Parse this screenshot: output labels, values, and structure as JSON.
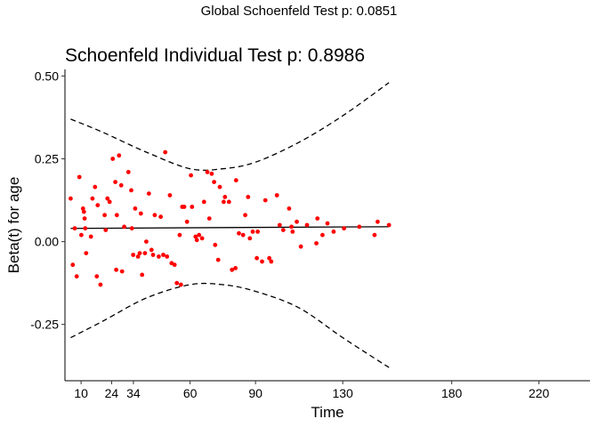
{
  "chart_data": {
    "type": "scatter",
    "suptitle": "Global Schoenfeld Test p: 0.0851",
    "title": "Schoenfeld Individual Test p: 0.8986",
    "xlabel": "Time",
    "ylabel": "Beta(t) for age",
    "x_scale": "rank-transformed time (tick labels show original time)",
    "x_ticks": [
      {
        "position": 10,
        "label": "10"
      },
      {
        "position": 24,
        "label": "24"
      },
      {
        "position": 34,
        "label": "34"
      },
      {
        "position": 60,
        "label": "60"
      },
      {
        "position": 90,
        "label": "90"
      },
      {
        "position": 130,
        "label": "130"
      },
      {
        "position": 180,
        "label": "180"
      },
      {
        "position": 220,
        "label": "220"
      }
    ],
    "y_ticks": [
      -0.25,
      0.0,
      0.25,
      0.5
    ],
    "y_tick_labels": [
      "-0.25",
      "0.00",
      "0.25",
      "0.50"
    ],
    "xlim": [
      2.6,
      243.4
    ],
    "ylim": [
      -0.42,
      0.52
    ],
    "grid": false,
    "legend": "none",
    "colors": {
      "points": "#ff0000",
      "lines": "#000000"
    },
    "points": {
      "x": [
        5.2,
        6.2,
        7.1,
        8.0,
        9.2,
        10.1,
        10.9,
        11.3,
        11.6,
        11.9,
        12.3,
        14.5,
        15.2,
        16.4,
        17.2,
        17.6,
        18.9,
        20.8,
        21.3,
        22.1,
        23.1,
        24.5,
        25.7,
        26.1,
        26.4,
        27.4,
        28.4,
        28.8,
        29.8,
        31.7,
        33.0,
        33.3,
        33.9,
        34.8,
        36.1,
        36.9,
        37.4,
        38.0,
        39.3,
        39.9,
        41.1,
        42.3,
        43.0,
        43.8,
        45.6,
        46.5,
        47.7,
        48.6,
        49.4,
        50.7,
        51.5,
        52.9,
        53.9,
        55.2,
        55.8,
        56.4,
        57.3,
        58.6,
        60.4,
        60.9,
        62.5,
        63.1,
        64.1,
        65.5,
        66.4,
        67.9,
        68.8,
        69.9,
        71.0,
        71.5,
        72.9,
        73.6,
        75.4,
        76.0,
        77.8,
        79.2,
        80.8,
        81.1,
        82.4,
        84.3,
        85.3,
        86.6,
        87.4,
        88.7,
        90.6,
        91.0,
        93.0,
        94.5,
        96.3,
        97.2,
        99.8,
        101.1,
        102.7,
        105.4,
        106.5,
        107.0,
        108.9,
        110.8,
        113.6,
        117.9,
        118.4,
        120.7,
        123.0,
        125.8,
        130.6,
        137.6,
        144.6,
        146.0,
        151.2
      ],
      "y": [
        0.13,
        -0.07,
        0.04,
        -0.105,
        0.195,
        0.02,
        0.1,
        0.09,
        0.07,
        0.04,
        -0.035,
        0.015,
        0.13,
        0.165,
        -0.105,
        0.11,
        -0.13,
        0.08,
        0.035,
        0.13,
        0.12,
        0.25,
        0.18,
        -0.085,
        0.08,
        0.26,
        0.17,
        -0.09,
        0.045,
        0.21,
        0.155,
        0.04,
        -0.04,
        0.1,
        -0.045,
        -0.035,
        0.085,
        -0.1,
        -0.035,
        0.0,
        0.145,
        -0.025,
        -0.04,
        0.08,
        -0.045,
        0.075,
        -0.04,
        0.27,
        -0.045,
        0.14,
        -0.065,
        -0.07,
        -0.125,
        0.02,
        -0.13,
        0.105,
        0.105,
        0.06,
        0.2,
        0.105,
        0.015,
        0.005,
        0.02,
        0.01,
        0.12,
        0.21,
        0.07,
        0.205,
        0.18,
        -0.01,
        -0.055,
        0.165,
        0.12,
        0.135,
        0.12,
        -0.085,
        -0.08,
        0.185,
        0.025,
        0.02,
        0.08,
        0.135,
        0.01,
        0.03,
        -0.05,
        0.03,
        -0.06,
        0.125,
        -0.05,
        -0.06,
        0.14,
        0.05,
        0.035,
        0.1,
        0.045,
        0.03,
        0.06,
        -0.015,
        0.05,
        -0.005,
        0.07,
        0.02,
        0.055,
        0.03,
        0.04,
        0.045,
        0.02,
        0.06,
        0.05
      ]
    },
    "fit_line": {
      "x": [
        5.2,
        151.2
      ],
      "y": [
        0.04,
        0.045
      ],
      "style": "solid"
    },
    "confidence_band": {
      "style": "dashed",
      "x": [
        5.2,
        20,
        40,
        60,
        75,
        90,
        110,
        130,
        151.2
      ],
      "upper": [
        0.37,
        0.33,
        0.27,
        0.22,
        0.22,
        0.24,
        0.3,
        0.38,
        0.48
      ],
      "lower": [
        -0.29,
        -0.24,
        -0.17,
        -0.13,
        -0.13,
        -0.15,
        -0.2,
        -0.29,
        -0.38
      ]
    }
  }
}
